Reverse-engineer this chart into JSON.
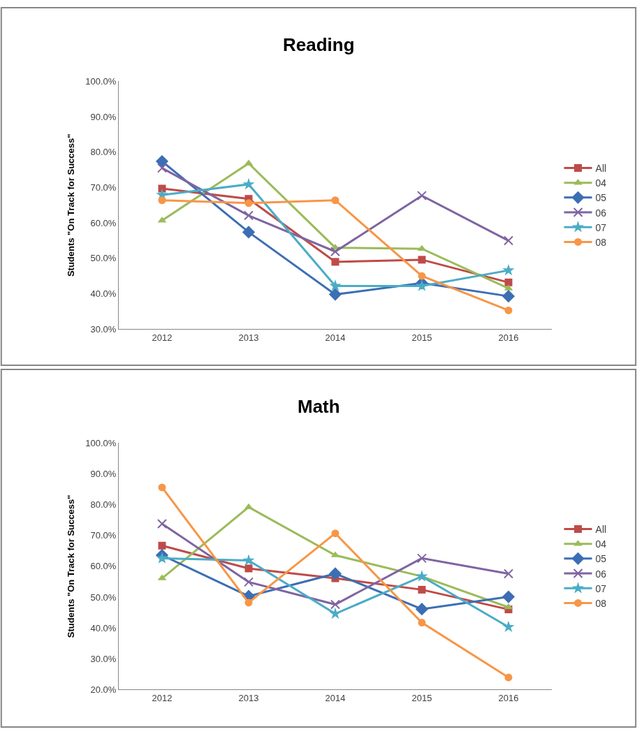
{
  "chart_data": [
    {
      "type": "line",
      "title": "Reading",
      "ylabel": "Students \"On Track for Success\"",
      "categories": [
        "2012",
        "2013",
        "2014",
        "2015",
        "2016"
      ],
      "series": [
        {
          "name": "All",
          "color": "#be4b48",
          "marker": "square",
          "values": [
            69.7,
            66.8,
            49.0,
            49.6,
            43.2
          ]
        },
        {
          "name": "04",
          "color": "#9bbb59",
          "marker": "triangle",
          "values": [
            60.7,
            76.8,
            53.0,
            52.7,
            41.5
          ]
        },
        {
          "name": "05",
          "color": "#3c6eb4",
          "marker": "diamond",
          "values": [
            77.4,
            57.4,
            39.8,
            43.0,
            39.3
          ]
        },
        {
          "name": "06",
          "color": "#7f64a2",
          "marker": "cross",
          "values": [
            75.5,
            62.1,
            51.9,
            67.7,
            55.0
          ]
        },
        {
          "name": "07",
          "color": "#4bacc6",
          "marker": "star",
          "values": [
            67.9,
            70.9,
            42.2,
            42.2,
            46.6
          ]
        },
        {
          "name": "08",
          "color": "#f79646",
          "marker": "circle",
          "values": [
            66.4,
            65.6,
            66.4,
            45.0,
            35.3
          ]
        }
      ],
      "ylim": [
        30,
        100
      ],
      "yticks": [
        {
          "value": 30,
          "label": "30.0%"
        },
        {
          "value": 40,
          "label": "40.0%"
        },
        {
          "value": 50,
          "label": "50.0%"
        },
        {
          "value": 60,
          "label": "60.0%"
        },
        {
          "value": 70,
          "label": "70.0%"
        },
        {
          "value": 80,
          "label": "80.0%"
        },
        {
          "value": 90,
          "label": "90.0%"
        },
        {
          "value": 100,
          "label": "100.0%"
        }
      ],
      "legend": "right",
      "line_style": "solid"
    },
    {
      "type": "line",
      "title": "Math",
      "ylabel": "Students \"On Track for Success\"",
      "categories": [
        "2012",
        "2013",
        "2014",
        "2015",
        "2016"
      ],
      "series": [
        {
          "name": "All",
          "color": "#be4b48",
          "marker": "square",
          "values": [
            66.7,
            59.3,
            56.1,
            52.4,
            46.0
          ]
        },
        {
          "name": "04",
          "color": "#9bbb59",
          "marker": "triangle",
          "values": [
            56.1,
            79.2,
            63.6,
            56.7,
            46.7
          ]
        },
        {
          "name": "05",
          "color": "#3c6eb4",
          "marker": "diamond",
          "values": [
            63.6,
            50.3,
            57.6,
            46.1,
            50.1
          ]
        },
        {
          "name": "06",
          "color": "#7f64a2",
          "marker": "cross",
          "values": [
            73.8,
            54.9,
            47.6,
            62.6,
            57.6
          ]
        },
        {
          "name": "07",
          "color": "#4bacc6",
          "marker": "star",
          "values": [
            62.6,
            61.9,
            44.6,
            56.7,
            40.3
          ]
        },
        {
          "name": "08",
          "color": "#f79646",
          "marker": "circle",
          "values": [
            85.6,
            48.2,
            70.7,
            41.7,
            23.9
          ]
        }
      ],
      "ylim": [
        20,
        100
      ],
      "yticks": [
        {
          "value": 20,
          "label": "20.0%"
        },
        {
          "value": 30,
          "label": "30.0%"
        },
        {
          "value": 40,
          "label": "40.0%"
        },
        {
          "value": 50,
          "label": "50.0%"
        },
        {
          "value": 60,
          "label": "60.0%"
        },
        {
          "value": 70,
          "label": "70.0%"
        },
        {
          "value": 80,
          "label": "80.0%"
        },
        {
          "value": 90,
          "label": "90.0%"
        },
        {
          "value": 100,
          "label": "100.0%"
        }
      ],
      "legend": "right",
      "line_style": "solid"
    }
  ]
}
